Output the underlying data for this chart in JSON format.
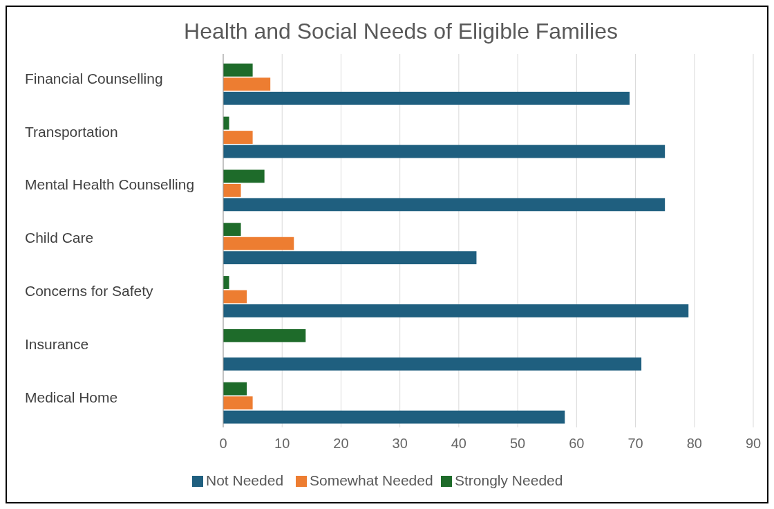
{
  "chart_data": {
    "type": "bar",
    "orientation": "horizontal",
    "title": "Health and Social Needs of Eligible Families",
    "categories": [
      "Financial Counselling",
      "Transportation",
      "Mental Health Counselling",
      "Child Care",
      "Concerns for Safety",
      "Insurance",
      "Medical Home"
    ],
    "series": [
      {
        "name": "Not Needed",
        "color": "#1f5f7f",
        "values": [
          69,
          75,
          75,
          43,
          79,
          71,
          58
        ]
      },
      {
        "name": "Somewhat Needed",
        "color": "#ed7d31",
        "values": [
          8,
          5,
          3,
          12,
          4,
          null,
          5
        ]
      },
      {
        "name": "Strongly Needed",
        "color": "#1e6b2a",
        "values": [
          5,
          1,
          7,
          3,
          1,
          14,
          4
        ]
      }
    ],
    "xlim": [
      0,
      90
    ],
    "xticks": [
      0,
      10,
      20,
      30,
      40,
      50,
      60,
      70,
      80,
      90
    ],
    "grid": "x",
    "legend": "bottom"
  }
}
